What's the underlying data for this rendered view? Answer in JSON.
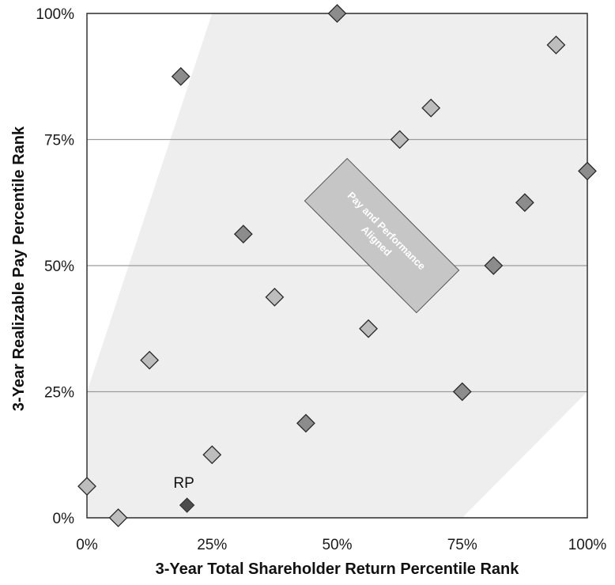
{
  "chart_data": {
    "type": "scatter",
    "xlabel": "3-Year Total Shareholder Return Percentile Rank",
    "ylabel": "3-Year Realizable Pay Percentile Rank",
    "xlim": [
      0,
      100
    ],
    "ylim": [
      0,
      100
    ],
    "x_ticks": [
      "0%",
      "25%",
      "50%",
      "75%",
      "100%"
    ],
    "y_ticks": [
      "0%",
      "25%",
      "50%",
      "75%",
      "100%"
    ],
    "grid": "horizontal",
    "alignment_band": {
      "label": "Pay and Performance Aligned",
      "offset": 25
    },
    "points": [
      {
        "x": 0,
        "y": 6.25,
        "inside_band": true
      },
      {
        "x": 6.25,
        "y": 0,
        "inside_band": true
      },
      {
        "x": 12.5,
        "y": 31.25,
        "inside_band": true
      },
      {
        "x": 25,
        "y": 12.5,
        "inside_band": true
      },
      {
        "x": 37.5,
        "y": 43.75,
        "inside_band": true
      },
      {
        "x": 56.25,
        "y": 37.5,
        "inside_band": true
      },
      {
        "x": 62.5,
        "y": 75,
        "inside_band": true
      },
      {
        "x": 68.75,
        "y": 81.25,
        "inside_band": true
      },
      {
        "x": 93.75,
        "y": 93.75,
        "inside_band": true
      },
      {
        "x": 18.75,
        "y": 87.5,
        "inside_band": false
      },
      {
        "x": 31.25,
        "y": 56.25,
        "inside_band": false
      },
      {
        "x": 43.75,
        "y": 18.75,
        "inside_band": false
      },
      {
        "x": 50,
        "y": 100,
        "inside_band": false
      },
      {
        "x": 75,
        "y": 25,
        "inside_band": false
      },
      {
        "x": 81.25,
        "y": 50,
        "inside_band": false
      },
      {
        "x": 87.5,
        "y": 62.5,
        "inside_band": false
      },
      {
        "x": 100,
        "y": 68.75,
        "inside_band": false
      }
    ],
    "highlight": {
      "label": "RP",
      "x": 20,
      "y": 2.5
    },
    "colors": {
      "band": "#eeeeee",
      "inside_marker": "#bdbdbd",
      "outside_marker": "#8c8c8c",
      "highlight_marker": "#4d4d4d",
      "band_label_box": "#c6c6c6"
    }
  }
}
